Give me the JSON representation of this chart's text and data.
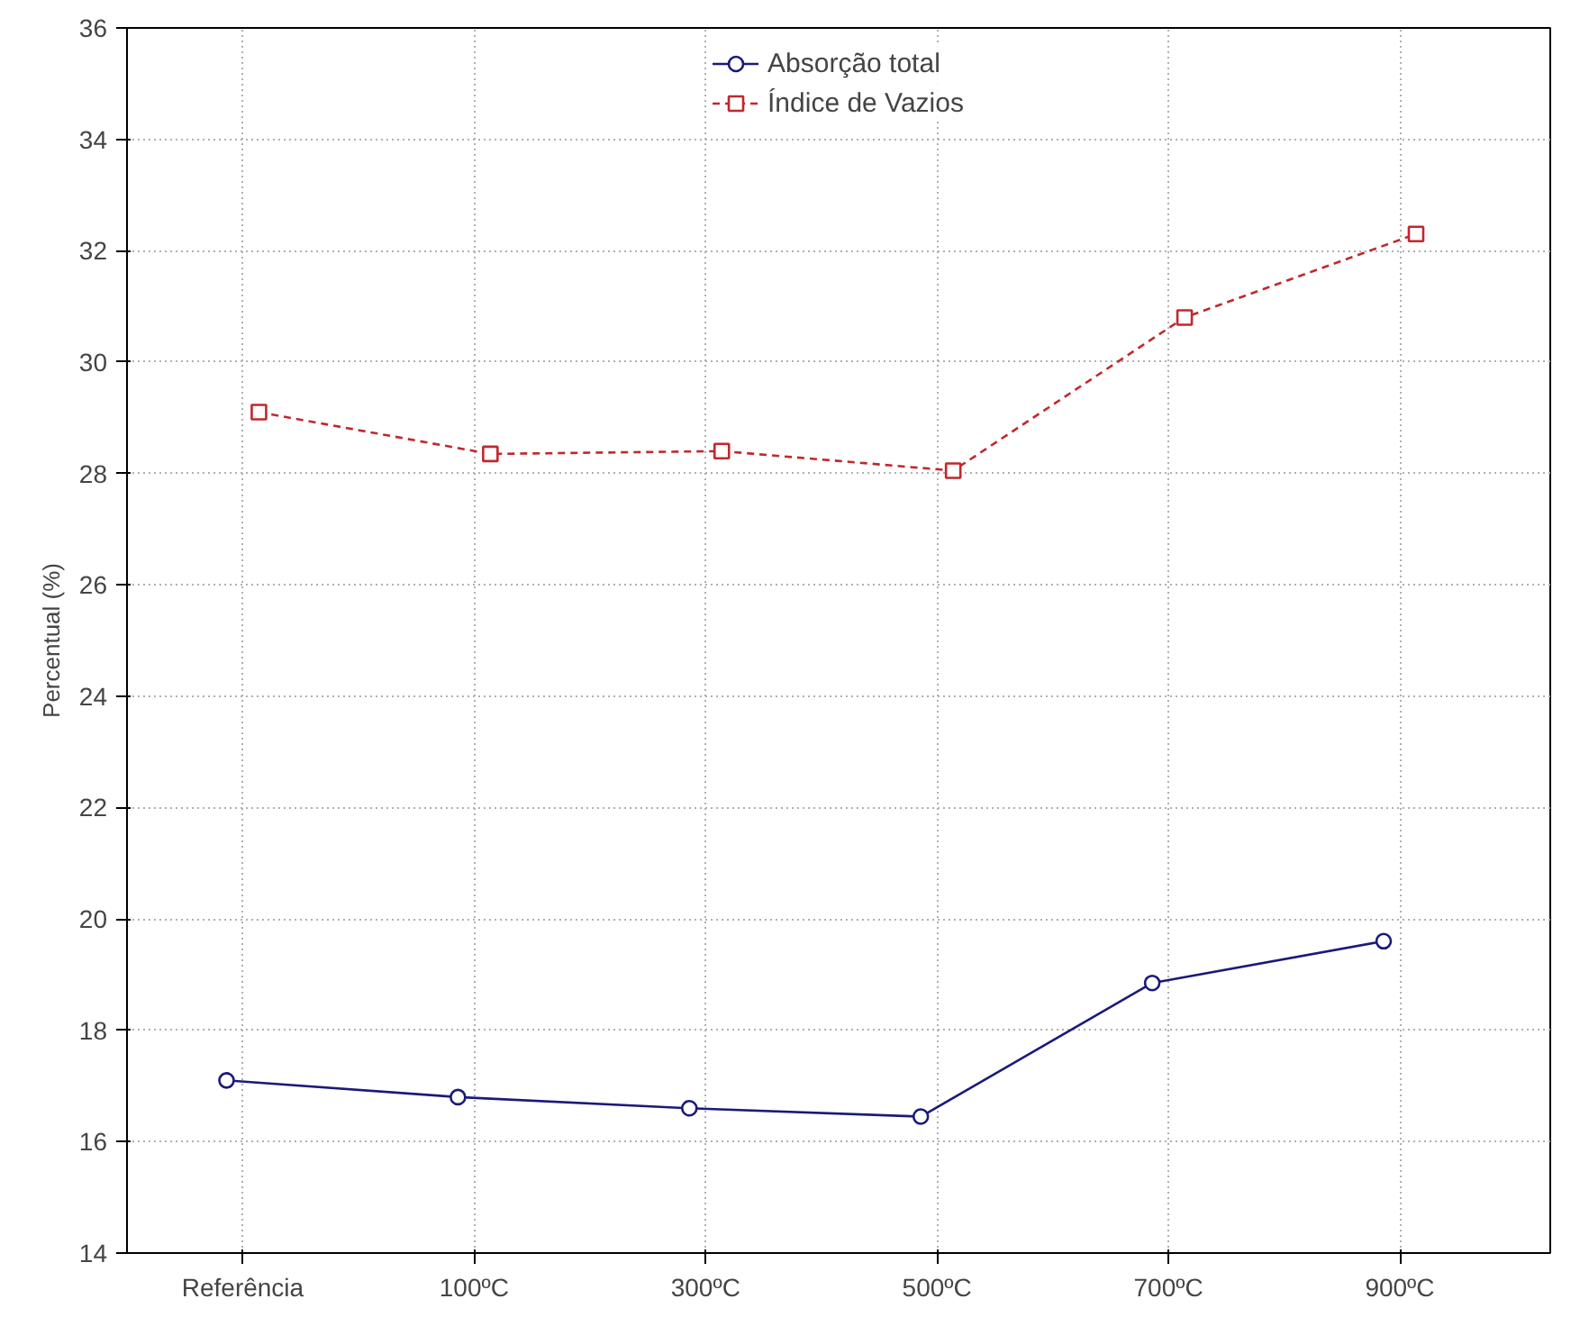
{
  "chart_data": {
    "type": "line",
    "ylabel": "Percentual (%)",
    "categories": [
      "Referência",
      "100ºC",
      "300ºC",
      "500ºC",
      "700ºC",
      "900ºC"
    ],
    "series": [
      {
        "name": "Absorção total",
        "color": "#1a1a7a",
        "values": [
          17.1,
          16.8,
          16.6,
          16.45,
          18.85,
          19.6
        ],
        "marker": "circle",
        "line_style": "solid"
      },
      {
        "name": "Índice de Vazios",
        "color": "#c0282d",
        "values": [
          29.1,
          28.35,
          28.4,
          28.05,
          30.8,
          32.3
        ],
        "marker": "square",
        "line_style": "dashed"
      }
    ],
    "ylim": [
      14,
      36
    ],
    "yticks": [
      14,
      16,
      18,
      20,
      22,
      24,
      26,
      28,
      30,
      32,
      34,
      36
    ],
    "grid": true,
    "legend": "top"
  }
}
